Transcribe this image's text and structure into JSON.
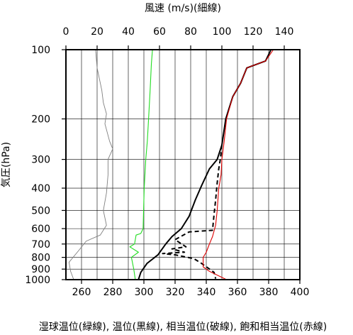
{
  "chart_data": {
    "type": "line",
    "title": "風速 (m/s)(細線)",
    "xlabel": "湿球温位(緑線), 温位(黒線), 相当温位(破線), 飽和相当温位(赤線)",
    "ylabel": "気圧(hPa)",
    "x_bottom": {
      "range": [
        250,
        400
      ],
      "ticks": [
        260,
        280,
        300,
        320,
        340,
        360,
        380,
        400
      ]
    },
    "x_top": {
      "range": [
        0,
        150
      ],
      "ticks": [
        0,
        20,
        40,
        60,
        80,
        100,
        120,
        140
      ]
    },
    "y": {
      "scale": "log",
      "range": [
        100,
        1000
      ],
      "reversed": true,
      "ticks": [
        100,
        200,
        300,
        400,
        500,
        600,
        700,
        800,
        900,
        1000
      ]
    },
    "grid": true,
    "series": [
      {
        "key": "wind",
        "axis": "top",
        "color": "#808080",
        "style": "thin",
        "points": [
          [
            19,
            100
          ],
          [
            20,
            120
          ],
          [
            23,
            150
          ],
          [
            24,
            170
          ],
          [
            26,
            190
          ],
          [
            25,
            210
          ],
          [
            28,
            250
          ],
          [
            30,
            270
          ],
          [
            27,
            300
          ],
          [
            27,
            350
          ],
          [
            26,
            420
          ],
          [
            24,
            500
          ],
          [
            26,
            580
          ],
          [
            22,
            640
          ],
          [
            13,
            680
          ],
          [
            8,
            750
          ],
          [
            2,
            840
          ],
          [
            3,
            920
          ],
          [
            5,
            1000
          ]
        ]
      },
      {
        "key": "theta_w",
        "axis": "bottom",
        "color": "#22dd22",
        "style": "solid",
        "points": [
          [
            305.5,
            100
          ],
          [
            304.8,
            115
          ],
          [
            304,
            150
          ],
          [
            303,
            200
          ],
          [
            302.2,
            250
          ],
          [
            301.2,
            300
          ],
          [
            300.2,
            400
          ],
          [
            299.8,
            500
          ],
          [
            299.5,
            600
          ],
          [
            298,
            630
          ],
          [
            295,
            640
          ],
          [
            294,
            700
          ],
          [
            291,
            720
          ],
          [
            296.5,
            760
          ],
          [
            292,
            800
          ],
          [
            293.5,
            900
          ],
          [
            294.5,
            1000
          ]
        ]
      },
      {
        "key": "theta",
        "axis": "bottom",
        "color": "#000000",
        "style": "solid",
        "points": [
          [
            381.5,
            100
          ],
          [
            378,
            112
          ],
          [
            366,
            120
          ],
          [
            362,
            140
          ],
          [
            357,
            160
          ],
          [
            352.5,
            200
          ],
          [
            350,
            260
          ],
          [
            347,
            300
          ],
          [
            342,
            330
          ],
          [
            337,
            390
          ],
          [
            333,
            450
          ],
          [
            329,
            530
          ],
          [
            324,
            600
          ],
          [
            318,
            650
          ],
          [
            314,
            700
          ],
          [
            309,
            780
          ],
          [
            302,
            850
          ],
          [
            298,
            930
          ],
          [
            296.5,
            1000
          ]
        ]
      },
      {
        "key": "theta_e",
        "axis": "bottom",
        "color": "#000000",
        "style": "dashed",
        "points": [
          [
            350,
            260
          ],
          [
            349,
            300
          ],
          [
            348,
            330
          ],
          [
            347,
            380
          ],
          [
            346,
            450
          ],
          [
            345,
            520
          ],
          [
            344,
            610
          ],
          [
            329,
            620
          ],
          [
            320,
            670
          ],
          [
            327,
            720
          ],
          [
            318,
            735
          ],
          [
            326,
            760
          ],
          [
            312,
            770
          ],
          [
            320,
            780
          ],
          [
            332,
            810
          ],
          [
            337,
            850
          ],
          [
            345,
            930
          ],
          [
            346,
            990
          ]
        ]
      },
      {
        "key": "theta_es",
        "axis": "bottom",
        "color": "#dd0000",
        "style": "solid",
        "points": [
          [
            383,
            100
          ],
          [
            378,
            112
          ],
          [
            366,
            120
          ],
          [
            362,
            140
          ],
          [
            357,
            160
          ],
          [
            353,
            200
          ],
          [
            351.5,
            250
          ],
          [
            350,
            300
          ],
          [
            349.5,
            350
          ],
          [
            348,
            400
          ],
          [
            347,
            500
          ],
          [
            346,
            580
          ],
          [
            344,
            650
          ],
          [
            342,
            700
          ],
          [
            340,
            760
          ],
          [
            338,
            800
          ],
          [
            338,
            880
          ],
          [
            342,
            920
          ],
          [
            353,
            1000
          ]
        ]
      }
    ]
  }
}
